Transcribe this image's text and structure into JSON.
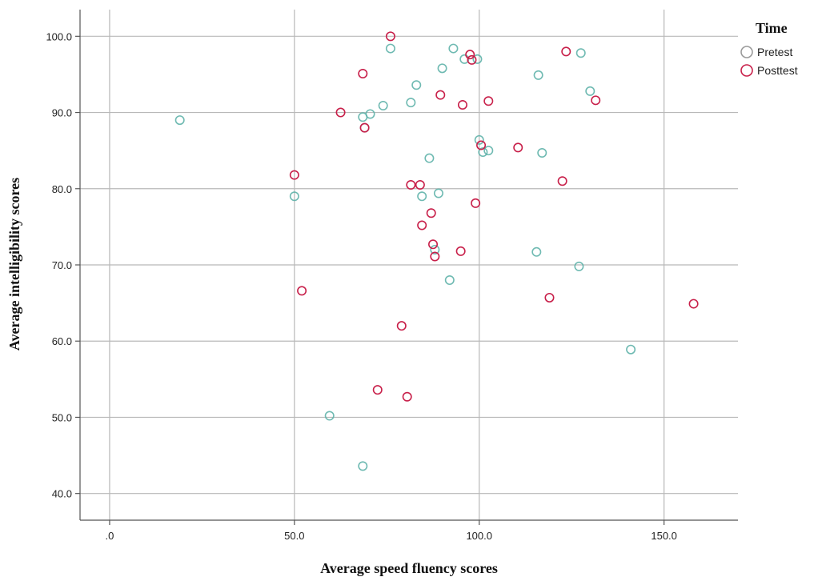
{
  "chart_data": {
    "type": "scatter",
    "title": "",
    "xlabel": "Average speed fluency scores",
    "ylabel": "Average intelligibility scores",
    "xlim": [
      -8,
      170
    ],
    "ylim": [
      36.5,
      103.5
    ],
    "x_ticks": [
      0,
      50,
      100,
      150
    ],
    "x_tick_labels": [
      ".0",
      "50.0",
      "100.0",
      "150.0"
    ],
    "y_ticks": [
      40,
      50,
      60,
      70,
      80,
      90,
      100
    ],
    "y_tick_labels": [
      "40.0",
      "50.0",
      "60.0",
      "70.0",
      "80.0",
      "90.0",
      "100.0"
    ],
    "grid": true,
    "legend": {
      "title": "Time",
      "placement": "top-right",
      "entries": [
        {
          "label": "Pretest",
          "color": "#5fb3aa"
        },
        {
          "label": "Posttest",
          "color": "#c8204a"
        }
      ]
    },
    "series": [
      {
        "name": "Pretest",
        "color": "#5fb3aa",
        "x": [
          19,
          50,
          59.5,
          68.5,
          68.5,
          69,
          70.5,
          74,
          76,
          81.5,
          83,
          84.5,
          86.5,
          88,
          89,
          90,
          92,
          93,
          96,
          99.5,
          100,
          101,
          102.5,
          115.5,
          116,
          117,
          127,
          127.5,
          130,
          141
        ],
        "y": [
          89,
          79,
          50.2,
          43.6,
          89.4,
          88,
          89.8,
          90.9,
          98.4,
          91.3,
          93.6,
          79,
          84,
          72,
          79.4,
          95.8,
          68,
          98.4,
          97,
          97,
          86.4,
          84.8,
          85,
          71.7,
          94.9,
          84.7,
          69.8,
          97.8,
          92.8,
          58.9
        ]
      },
      {
        "name": "Posttest",
        "color": "#c8204a",
        "x": [
          50,
          52,
          62.5,
          68.5,
          69,
          72.5,
          76,
          79,
          80.5,
          81.5,
          84,
          84.5,
          87,
          87.5,
          88,
          89.5,
          95,
          95.5,
          97.5,
          98,
          99,
          100.5,
          102.5,
          110.5,
          119,
          122.5,
          123.5,
          131.5,
          158
        ],
        "y": [
          81.8,
          66.6,
          90,
          95.1,
          88,
          53.6,
          100,
          62,
          52.7,
          80.5,
          80.5,
          75.2,
          76.8,
          72.7,
          71.1,
          92.3,
          71.8,
          91,
          97.6,
          96.9,
          78.1,
          85.7,
          91.5,
          85.4,
          65.7,
          81,
          98,
          91.6,
          64.9
        ]
      }
    ]
  }
}
